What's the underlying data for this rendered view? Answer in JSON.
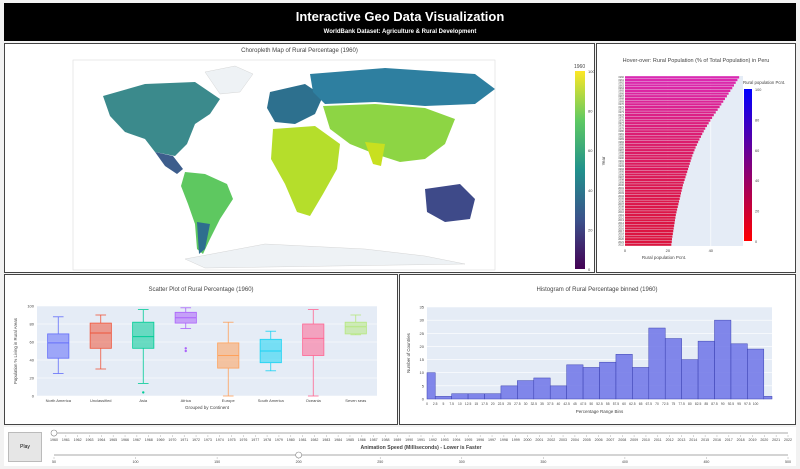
{
  "header": {
    "title": "Interactive Geo Data Visualization",
    "subtitle": "WorldBank Dataset: Agriculture & Rural Development"
  },
  "map": {
    "title": "Choropleth Map of Rural Percentage (1960)",
    "colorbar_title": "1960",
    "colorbar_ticks": [
      "100",
      "80",
      "60",
      "40",
      "20",
      "0"
    ]
  },
  "bar": {
    "title": "Hover-over: Rural Population (% of Total Population) in Peru",
    "legend_title": "Rural population Pcnt.",
    "legend_ticks": [
      "100",
      "80",
      "60",
      "40",
      "20",
      "0"
    ]
  },
  "controls": {
    "play_label": "Play",
    "speed_label": "Animation Speed (Milliseconds) - Lower is Faster",
    "speed_ticks": [
      "50",
      "100",
      "150",
      "200",
      "250",
      "300",
      "350",
      "400",
      "450",
      "500"
    ],
    "speed_value": 200
  },
  "chart_data": [
    {
      "type": "bar",
      "orientation": "horizontal",
      "title": "",
      "ylabel": "Year",
      "xlabel": "Rural population Pcnt.",
      "xticks": [
        "0",
        "20",
        "40"
      ],
      "xlim": [
        0,
        55
      ],
      "years": [
        "1960",
        "1961",
        "1962",
        "1963",
        "1964",
        "1965",
        "1966",
        "1967",
        "1968",
        "1969",
        "1970",
        "1971",
        "1972",
        "1973",
        "1974",
        "1975",
        "1976",
        "1977",
        "1978",
        "1979",
        "1980",
        "1981",
        "1982",
        "1983",
        "1984",
        "1985",
        "1986",
        "1987",
        "1988",
        "1989",
        "1990",
        "1991",
        "1992",
        "1993",
        "1994",
        "1995",
        "1996",
        "1997",
        "1998",
        "1999",
        "2000",
        "2001",
        "2002",
        "2003",
        "2004",
        "2005",
        "2006",
        "2007",
        "2008",
        "2009",
        "2010",
        "2011",
        "2012",
        "2013",
        "2014",
        "2015",
        "2016",
        "2017",
        "2018",
        "2019",
        "2020",
        "2021",
        "2022"
      ],
      "values": [
        53.2,
        52.4,
        51.6,
        50.8,
        50.0,
        49.1,
        48.3,
        47.5,
        46.6,
        45.8,
        44.9,
        44.1,
        43.2,
        42.3,
        41.4,
        40.6,
        39.8,
        39.0,
        38.2,
        37.4,
        36.7,
        36.0,
        35.4,
        34.7,
        34.1,
        33.5,
        32.9,
        32.4,
        31.9,
        31.4,
        31.0,
        30.6,
        30.2,
        29.8,
        29.4,
        29.0,
        28.6,
        28.2,
        27.8,
        27.4,
        27.0,
        26.7,
        26.4,
        26.1,
        25.8,
        25.5,
        25.2,
        24.9,
        24.6,
        24.3,
        24.0,
        23.7,
        23.5,
        23.3,
        23.1,
        22.9,
        22.7,
        22.5,
        22.3,
        22.1,
        21.9,
        21.8,
        21.6
      ]
    },
    {
      "type": "box",
      "title": "Scatter Plot of Rural Percentage (1960)",
      "xlabel": "Grouped by Continent",
      "ylabel": "Population % Living in Rural Areas",
      "ylim": [
        0,
        100
      ],
      "yticks": [
        "0",
        "20",
        "40",
        "60",
        "80",
        "100"
      ],
      "boxes": [
        {
          "name": "North America",
          "color": "#636efa",
          "min": 25,
          "q1": 42,
          "median": 59,
          "q3": 69,
          "max": 88,
          "outliers": []
        },
        {
          "name": "Unclassified",
          "color": "#ef553b",
          "min": 30,
          "q1": 53,
          "median": 70,
          "q3": 81,
          "max": 90,
          "outliers": []
        },
        {
          "name": "Asia",
          "color": "#00cc96",
          "min": 14,
          "q1": 53,
          "median": 66,
          "q3": 82,
          "max": 96,
          "outliers": [
            4
          ]
        },
        {
          "name": "Africa",
          "color": "#ab63fa",
          "min": 75,
          "q1": 81,
          "median": 87,
          "q3": 93,
          "max": 98,
          "outliers": [
            53,
            50
          ]
        },
        {
          "name": "Europe",
          "color": "#ffa15a",
          "min": 0,
          "q1": 31,
          "median": 45,
          "q3": 59,
          "max": 82,
          "outliers": []
        },
        {
          "name": "South America",
          "color": "#19d3f3",
          "min": 28,
          "q1": 37,
          "median": 50,
          "q3": 63,
          "max": 72,
          "outliers": []
        },
        {
          "name": "Oceania",
          "color": "#ff6692",
          "min": 0,
          "q1": 45,
          "median": 64,
          "q3": 80,
          "max": 96,
          "outliers": []
        },
        {
          "name": "Seven seas",
          "color": "#b6e880",
          "min": 68,
          "q1": 69,
          "median": 77,
          "q3": 82,
          "max": 90,
          "outliers": []
        }
      ]
    },
    {
      "type": "histogram",
      "title": "Histogram of Rural Percentage binned (1960)",
      "xlabel": "Percentage Range Bins",
      "ylabel": "Number of Countries",
      "ylim": [
        0,
        35
      ],
      "yticks": [
        "0",
        "5",
        "10",
        "15",
        "20",
        "25",
        "30",
        "35"
      ],
      "categories": [
        "0",
        "2.5",
        "5",
        "7.5",
        "10",
        "12.5",
        "15",
        "17.5",
        "20",
        "22.5",
        "25",
        "27.5",
        "30",
        "32.5",
        "35",
        "37.5",
        "40",
        "42.5",
        "45",
        "47.5",
        "50",
        "52.5",
        "55",
        "57.5",
        "60",
        "62.5",
        "65",
        "67.5",
        "70",
        "72.5",
        "75",
        "77.5",
        "80",
        "82.5",
        "85",
        "87.5",
        "90",
        "92.5",
        "95",
        "97.5",
        "100"
      ],
      "bins": [
        {
          "start": 0,
          "end": 2.5,
          "count": 10
        },
        {
          "start": 2.5,
          "end": 7.5,
          "count": 1
        },
        {
          "start": 7.5,
          "end": 12.5,
          "count": 2
        },
        {
          "start": 12.5,
          "end": 17.5,
          "count": 2
        },
        {
          "start": 17.5,
          "end": 22.5,
          "count": 2
        },
        {
          "start": 22.5,
          "end": 27.5,
          "count": 5
        },
        {
          "start": 27.5,
          "end": 32.5,
          "count": 7
        },
        {
          "start": 32.5,
          "end": 37.5,
          "count": 8
        },
        {
          "start": 37.5,
          "end": 42.5,
          "count": 5
        },
        {
          "start": 42.5,
          "end": 47.5,
          "count": 13
        },
        {
          "start": 47.5,
          "end": 52.5,
          "count": 12
        },
        {
          "start": 52.5,
          "end": 57.5,
          "count": 14
        },
        {
          "start": 57.5,
          "end": 62.5,
          "count": 17
        },
        {
          "start": 62.5,
          "end": 67.5,
          "count": 12
        },
        {
          "start": 67.5,
          "end": 72.5,
          "count": 27
        },
        {
          "start": 72.5,
          "end": 77.5,
          "count": 23
        },
        {
          "start": 77.5,
          "end": 82.5,
          "count": 15
        },
        {
          "start": 82.5,
          "end": 87.5,
          "count": 22
        },
        {
          "start": 87.5,
          "end": 92.5,
          "count": 30
        },
        {
          "start": 92.5,
          "end": 97.5,
          "count": 21
        },
        {
          "start": 97.5,
          "end": 102.5,
          "count": 19
        },
        {
          "start": 102.5,
          "end": 105,
          "count": 1
        }
      ]
    },
    {
      "type": "slider",
      "years": [
        "1960",
        "1961",
        "1962",
        "1963",
        "1964",
        "1965",
        "1966",
        "1967",
        "1968",
        "1969",
        "1970",
        "1971",
        "1972",
        "1973",
        "1974",
        "1975",
        "1976",
        "1977",
        "1978",
        "1979",
        "1980",
        "1981",
        "1982",
        "1983",
        "1984",
        "1985",
        "1986",
        "1987",
        "1988",
        "1989",
        "1990",
        "1991",
        "1992",
        "1993",
        "1994",
        "1995",
        "1996",
        "1997",
        "1998",
        "1999",
        "2000",
        "2001",
        "2002",
        "2003",
        "2004",
        "2005",
        "2006",
        "2007",
        "2008",
        "2009",
        "2010",
        "2011",
        "2012",
        "2013",
        "2014",
        "2015",
        "2016",
        "2017",
        "2018",
        "2019",
        "2020",
        "2021",
        "2022"
      ],
      "selected": "1960"
    }
  ]
}
